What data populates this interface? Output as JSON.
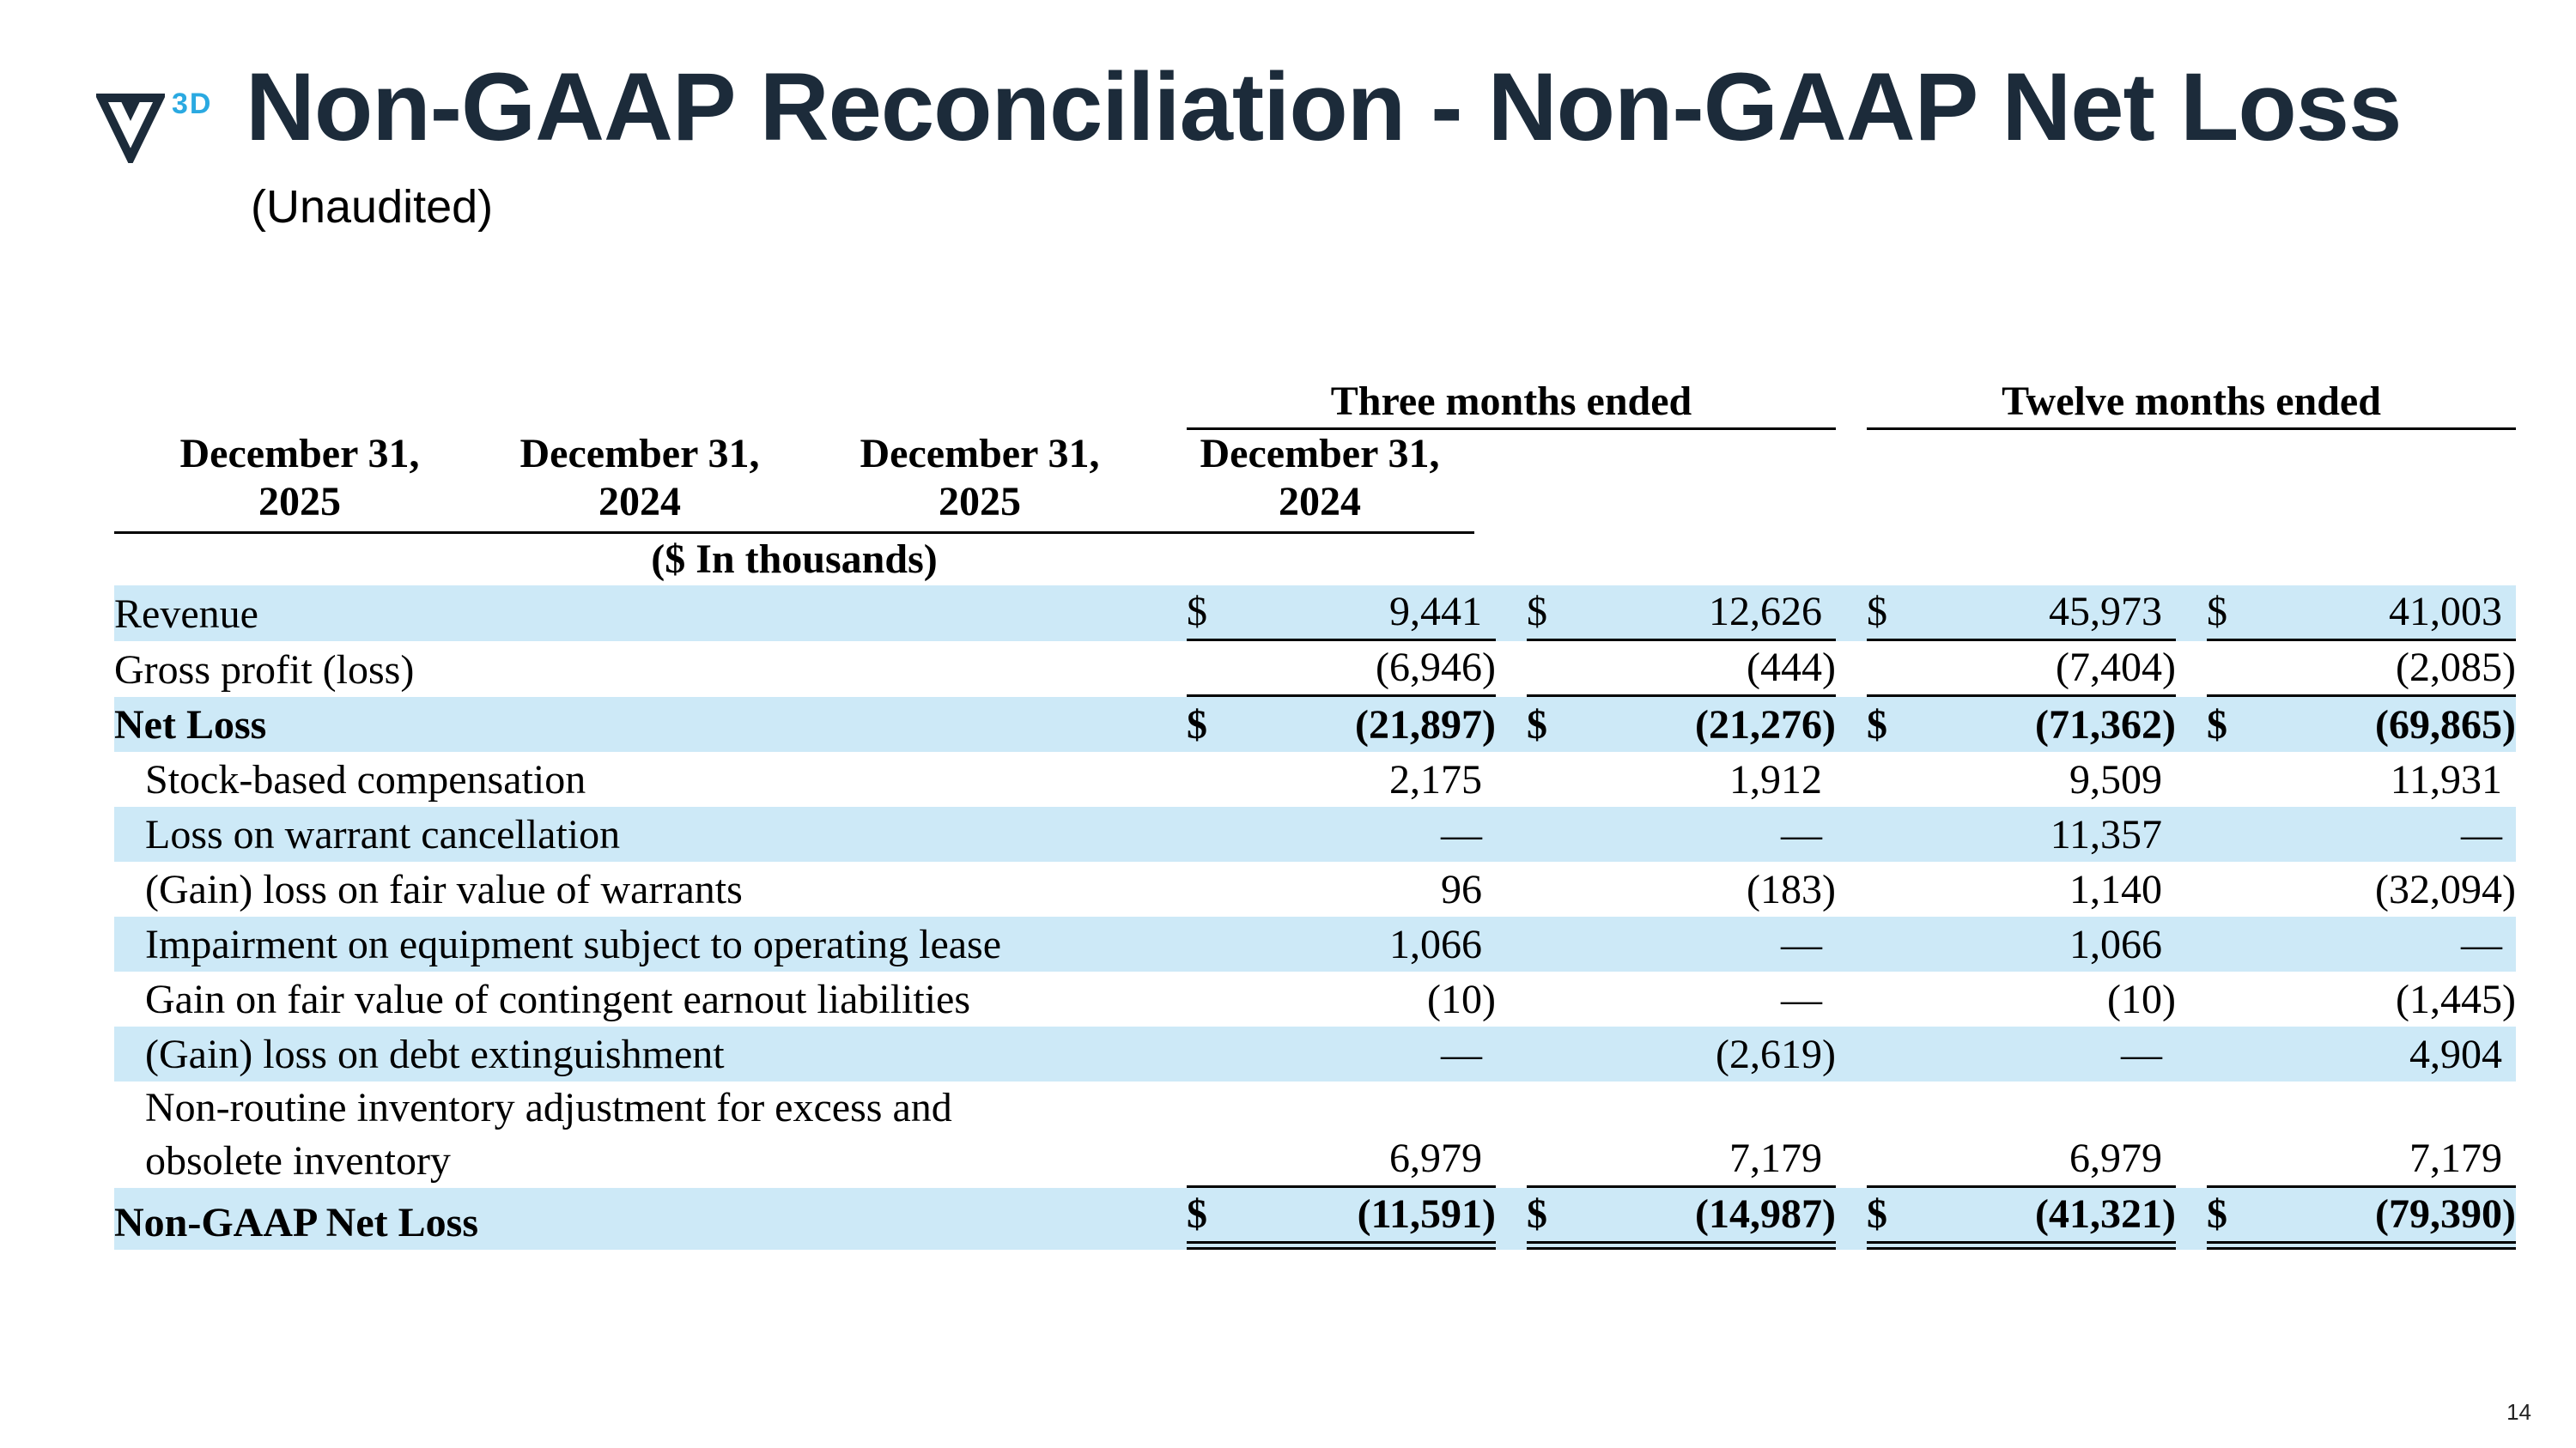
{
  "slide": {
    "title": "Non-GAAP Reconciliation - Non-GAAP Net Loss",
    "subtitle": "(Unaudited)",
    "logo_text": "3D",
    "page_number": "14"
  },
  "colors": {
    "accent_blue": "#2aa9e1",
    "stripe_blue": "#cde9f7",
    "title_navy": "#1c2b3a"
  },
  "table": {
    "group_headers": [
      "Three months ended",
      "Twelve months ended"
    ],
    "columns": [
      {
        "line1": "December 31,",
        "line2": "2025"
      },
      {
        "line1": "December 31,",
        "line2": "2024"
      },
      {
        "line1": "December 31,",
        "line2": "2025"
      },
      {
        "line1": "December 31,",
        "line2": "2024"
      }
    ],
    "units_note": "($ In thousands)",
    "rows": [
      {
        "label": "Revenue",
        "indent": false,
        "bold": false,
        "shaded": true,
        "dollar": true,
        "underline": "single",
        "values": [
          "9,441",
          "12,626",
          "45,973",
          "41,003"
        ]
      },
      {
        "label": "Gross profit (loss)",
        "indent": false,
        "bold": false,
        "shaded": false,
        "dollar": false,
        "underline": "single",
        "values": [
          "(6,946)",
          "(444)",
          "(7,404)",
          "(2,085)"
        ]
      },
      {
        "label": "Net Loss",
        "indent": false,
        "bold": true,
        "shaded": true,
        "dollar": true,
        "underline": "none",
        "values": [
          "(21,897)",
          "(21,276)",
          "(71,362)",
          "(69,865)"
        ]
      },
      {
        "label": "Stock-based compensation",
        "indent": true,
        "bold": false,
        "shaded": false,
        "dollar": false,
        "underline": "none",
        "values": [
          "2,175",
          "1,912",
          "9,509",
          "11,931"
        ]
      },
      {
        "label": "Loss on warrant cancellation",
        "indent": true,
        "bold": false,
        "shaded": true,
        "dollar": false,
        "underline": "none",
        "values": [
          "—",
          "—",
          "11,357",
          "—"
        ]
      },
      {
        "label": "(Gain) loss on fair value of warrants",
        "indent": true,
        "bold": false,
        "shaded": false,
        "dollar": false,
        "underline": "none",
        "values": [
          "96",
          "(183)",
          "1,140",
          "(32,094)"
        ]
      },
      {
        "label": "Impairment on equipment subject to operating lease",
        "indent": true,
        "bold": false,
        "shaded": true,
        "dollar": false,
        "underline": "none",
        "values": [
          "1,066",
          "—",
          "1,066",
          "—"
        ]
      },
      {
        "label": "Gain on fair value of contingent earnout liabilities",
        "indent": true,
        "bold": false,
        "shaded": false,
        "dollar": false,
        "underline": "none",
        "values": [
          "(10)",
          "—",
          "(10)",
          "(1,445)"
        ]
      },
      {
        "label": "(Gain) loss on debt extinguishment",
        "indent": true,
        "bold": false,
        "shaded": true,
        "dollar": false,
        "underline": "none",
        "values": [
          "—",
          "(2,619)",
          "—",
          "4,904"
        ]
      },
      {
        "label": "Non-routine inventory adjustment for excess and\nobsolete inventory",
        "indent": true,
        "bold": false,
        "shaded": false,
        "dollar": false,
        "underline": "single",
        "two_line": true,
        "values": [
          "6,979",
          "7,179",
          "6,979",
          "7,179"
        ]
      },
      {
        "label": "Non-GAAP Net Loss",
        "indent": false,
        "bold": true,
        "shaded": true,
        "dollar": true,
        "underline": "double",
        "values": [
          "(11,591)",
          "(14,987)",
          "(41,321)",
          "(79,390)"
        ]
      }
    ]
  }
}
